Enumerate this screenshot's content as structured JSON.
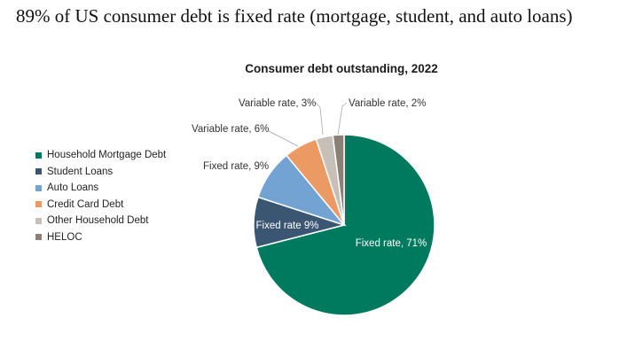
{
  "page": {
    "title": "89% of US consumer debt is fixed rate (mortgage, student, and auto loans)"
  },
  "chart_data": {
    "type": "pie",
    "title": "Consumer debt outstanding, 2022",
    "legend_position": "left",
    "categories": [
      "Household Mortgage Debt",
      "Student Loans",
      "Auto Loans",
      "Credit Card Debt",
      "Other Household Debt",
      "HELOC"
    ],
    "slices": [
      {
        "label": "Fixed rate, 71%",
        "value": 71,
        "category": "Household Mortgage Debt",
        "color": "#007a5e"
      },
      {
        "label": "Fixed rate  9%",
        "value": 9,
        "category": "Student Loans",
        "color": "#3b5672"
      },
      {
        "label": "Fixed rate, 9%",
        "value": 9,
        "category": "Auto Loans",
        "color": "#72a3d3"
      },
      {
        "label": "Variable rate, 6%",
        "value": 6,
        "category": "Credit Card Debt",
        "color": "#ec9a63"
      },
      {
        "label": "Variable rate, 3%",
        "value": 3,
        "category": "Other Household Debt",
        "color": "#c7c0b8"
      },
      {
        "label": "Variable rate, 2%",
        "value": 2,
        "category": "HELOC",
        "color": "#8a8076"
      }
    ]
  }
}
